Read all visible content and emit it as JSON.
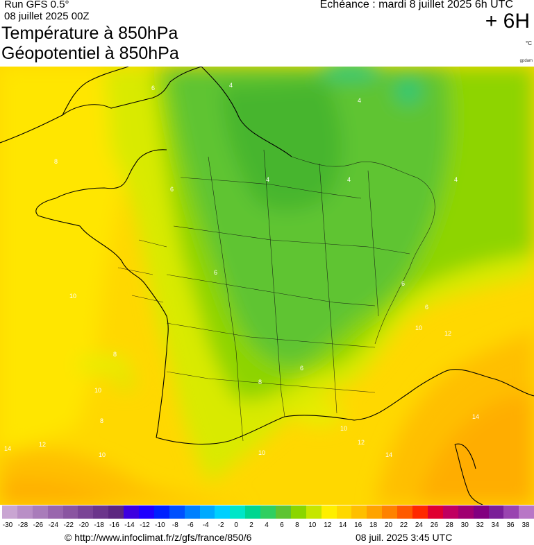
{
  "header": {
    "run": "Run GFS 0.5°",
    "run_date": "08 juillet 2025 00Z",
    "title_line1": "Température à 850hPa",
    "title_line2": "Géopotentiel à 850hPa",
    "echeance": "Echéance : mardi 8 juillet 2025 6h UTC",
    "forecast_hour": "+ 6H",
    "unit": "°C",
    "credit": "gpdam"
  },
  "map": {
    "region": "France",
    "contour_labels": [
      "4",
      "4",
      "4",
      "4",
      "4",
      "6",
      "6",
      "6",
      "6",
      "6",
      "6",
      "8",
      "8",
      "8",
      "8",
      "10",
      "10",
      "10",
      "10",
      "10",
      "10",
      "12",
      "12",
      "12",
      "14",
      "14",
      "14"
    ]
  },
  "legend": {
    "ticks": [
      "-30",
      "-28",
      "-26",
      "-24",
      "-22",
      "-20",
      "-18",
      "-16",
      "-14",
      "-12",
      "-10",
      "-8",
      "-6",
      "-4",
      "-2",
      "0",
      "2",
      "4",
      "6",
      "8",
      "10",
      "12",
      "14",
      "16",
      "18",
      "20",
      "22",
      "24",
      "26",
      "28",
      "30",
      "32",
      "34",
      "36",
      "38"
    ],
    "colors": [
      "#c9a5d2",
      "#b98fc6",
      "#a97cba",
      "#9966ad",
      "#8a55a1",
      "#7a4496",
      "#6b358b",
      "#5c2680",
      "#3d00e0",
      "#1f00ff",
      "#0020ff",
      "#0050ff",
      "#0080ff",
      "#00aaff",
      "#00d0ff",
      "#00e6c8",
      "#00d690",
      "#2fcf60",
      "#5ec432",
      "#8ad600",
      "#c6e600",
      "#ffef00",
      "#ffd800",
      "#ffbf00",
      "#ffa300",
      "#ff8200",
      "#ff5a00",
      "#ff2800",
      "#e00030",
      "#c00060",
      "#a00070",
      "#820080",
      "#7a1f98",
      "#9944b0",
      "#b877c6"
    ]
  },
  "footer": {
    "url": "© http://www.infoclimat.fr/z/gfs/france/850/6",
    "timestamp": "08 juil. 2025  3:45 UTC"
  }
}
